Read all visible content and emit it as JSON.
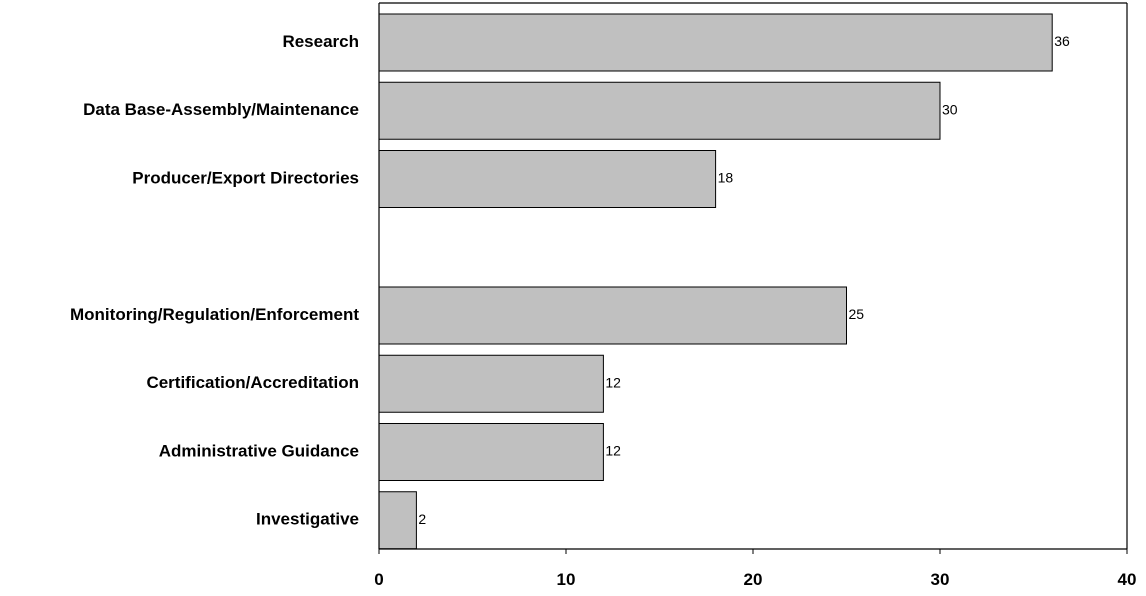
{
  "chart_data": {
    "type": "bar",
    "orientation": "horizontal",
    "categories": [
      "Research",
      "Data Base-Assembly/Maintenance",
      "Producer/Export Directories",
      "",
      "Monitoring/Regulation/Enforcement",
      "Certification/Accreditation",
      "Administrative Guidance",
      "Investigative"
    ],
    "values": [
      36,
      30,
      18,
      null,
      25,
      12,
      12,
      2
    ],
    "data_labels": [
      "36",
      "30",
      "18",
      "",
      "25",
      "12",
      "12",
      "2"
    ],
    "x_ticks": [
      "0",
      "10",
      "20",
      "30",
      "40"
    ],
    "xlim": [
      0,
      40
    ],
    "title": "",
    "xlabel": "",
    "ylabel": "",
    "grid": false,
    "legend": "none",
    "colors": {
      "bar_fill": "#c0c0c0",
      "bar_stroke": "#000000",
      "axis": "#000000",
      "background": "#ffffff"
    }
  }
}
